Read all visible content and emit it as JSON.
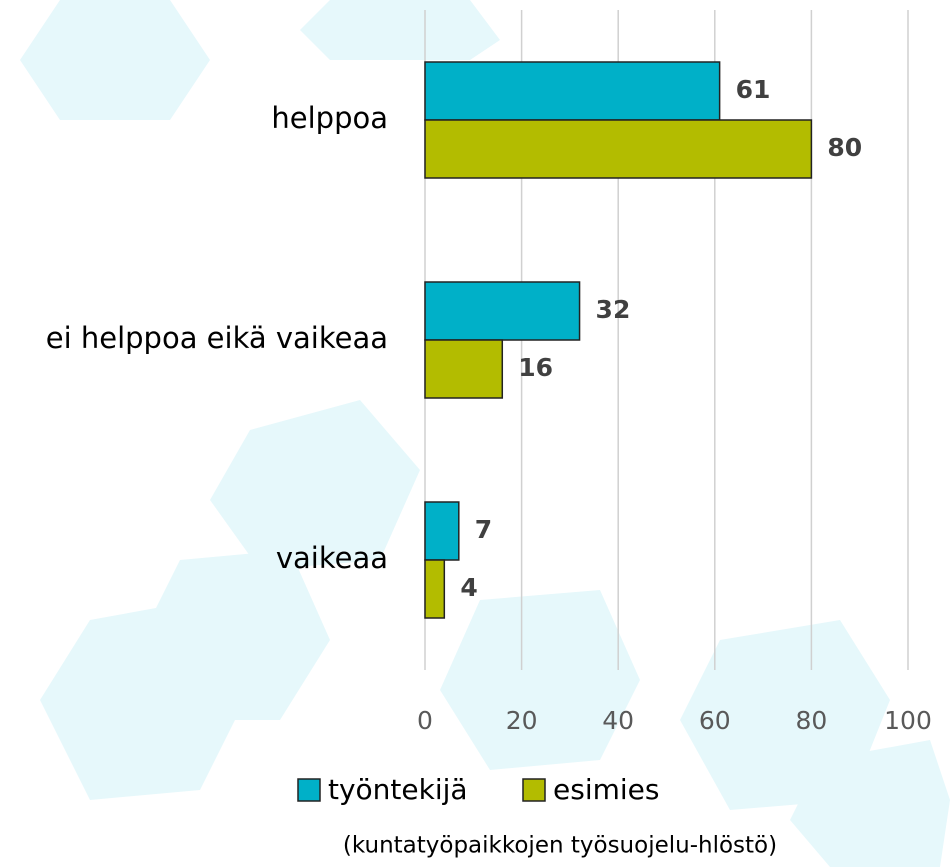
{
  "chart_data": {
    "type": "bar",
    "orientation": "horizontal",
    "categories": [
      "helppoa",
      "ei helppoa eikä vaikeaa",
      "vaikeaa"
    ],
    "series": [
      {
        "name": "työntekijä",
        "color": "#00b0c8",
        "values": [
          61,
          32,
          7
        ]
      },
      {
        "name": "esimies",
        "color": "#b3bc00",
        "values": [
          80,
          16,
          4
        ]
      }
    ],
    "xlim": [
      0,
      100
    ],
    "xticks": [
      0,
      20,
      40,
      60,
      80,
      100
    ],
    "grid": true,
    "legend": "bottom",
    "note": "(kuntatyöpaikkojen työsuojelu-hlöstö)"
  }
}
